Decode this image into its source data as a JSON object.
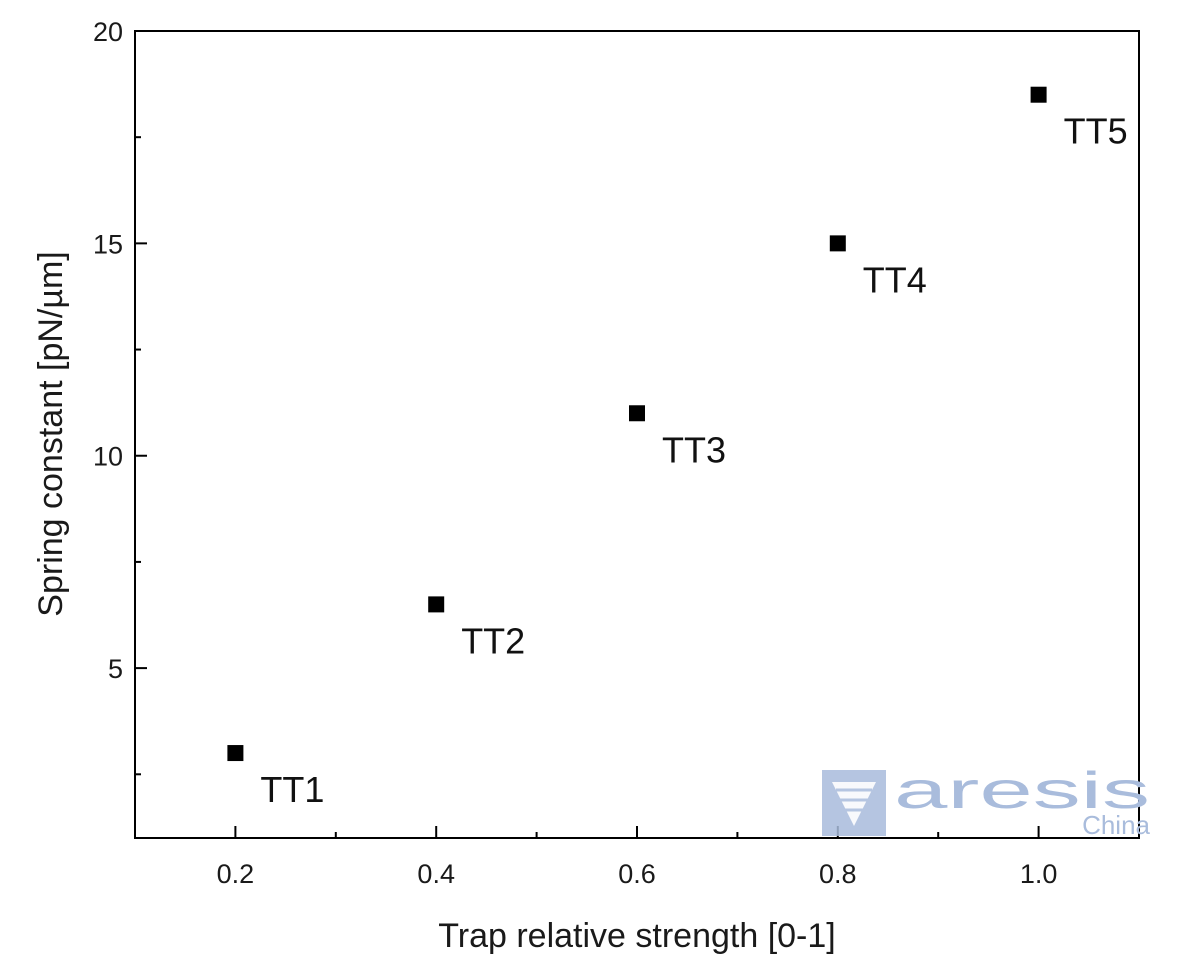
{
  "chart_data": {
    "type": "scatter",
    "title": "",
    "xlabel": "Trap relative strength [0-1]",
    "ylabel": "Spring constant [pN/µm]",
    "xlim": [
      0.1,
      1.1
    ],
    "ylim": [
      1.0,
      20.0
    ],
    "x_ticks": [
      0.2,
      0.4,
      0.6,
      0.8,
      1.0
    ],
    "x_tick_labels": [
      "0.2",
      "0.4",
      "0.6",
      "0.8",
      "1.0"
    ],
    "x_minor_ticks": [
      0.3,
      0.5,
      0.7,
      0.9
    ],
    "y_ticks": [
      5,
      10,
      15,
      20
    ],
    "y_tick_labels": [
      "5",
      "10",
      "15",
      "20"
    ],
    "y_minor_ticks": [
      2.5,
      7.5,
      12.5,
      17.5
    ],
    "grid": false,
    "legend": false,
    "marker": "square",
    "marker_color": "#000000",
    "series": [
      {
        "x": [
          0.2,
          0.4,
          0.6,
          0.8,
          1.0
        ],
        "y": [
          3.0,
          6.5,
          11.0,
          15.0,
          18.5
        ],
        "point_labels": [
          "TT1",
          "TT2",
          "TT3",
          "TT4",
          "TT5"
        ]
      }
    ]
  },
  "watermark": {
    "brand": "aresis",
    "sub": "China",
    "color": "#a9bcdc"
  }
}
